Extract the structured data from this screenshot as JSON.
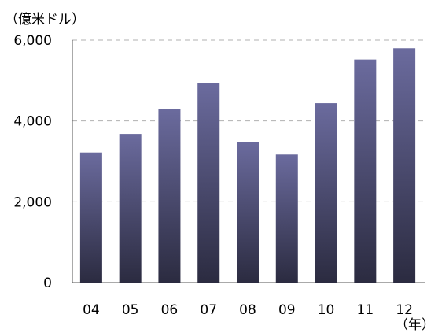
{
  "chart_data": {
    "type": "bar",
    "title": "",
    "y_unit_label": "（億米ドル）",
    "x_unit_label": "（年）",
    "categories": [
      "04",
      "05",
      "06",
      "07",
      "08",
      "09",
      "10",
      "11",
      "12"
    ],
    "values": [
      3220,
      3680,
      4300,
      4930,
      3480,
      3170,
      4440,
      5520,
      5800
    ],
    "ylim": [
      0,
      6000
    ],
    "yticks": [
      0,
      2000,
      4000,
      6000
    ],
    "ytick_labels": [
      "0",
      "2,000",
      "4,000",
      "6,000"
    ],
    "grid": true,
    "bar_color_top": "#6b6b9e",
    "bar_color_bottom": "#2b2b40"
  }
}
